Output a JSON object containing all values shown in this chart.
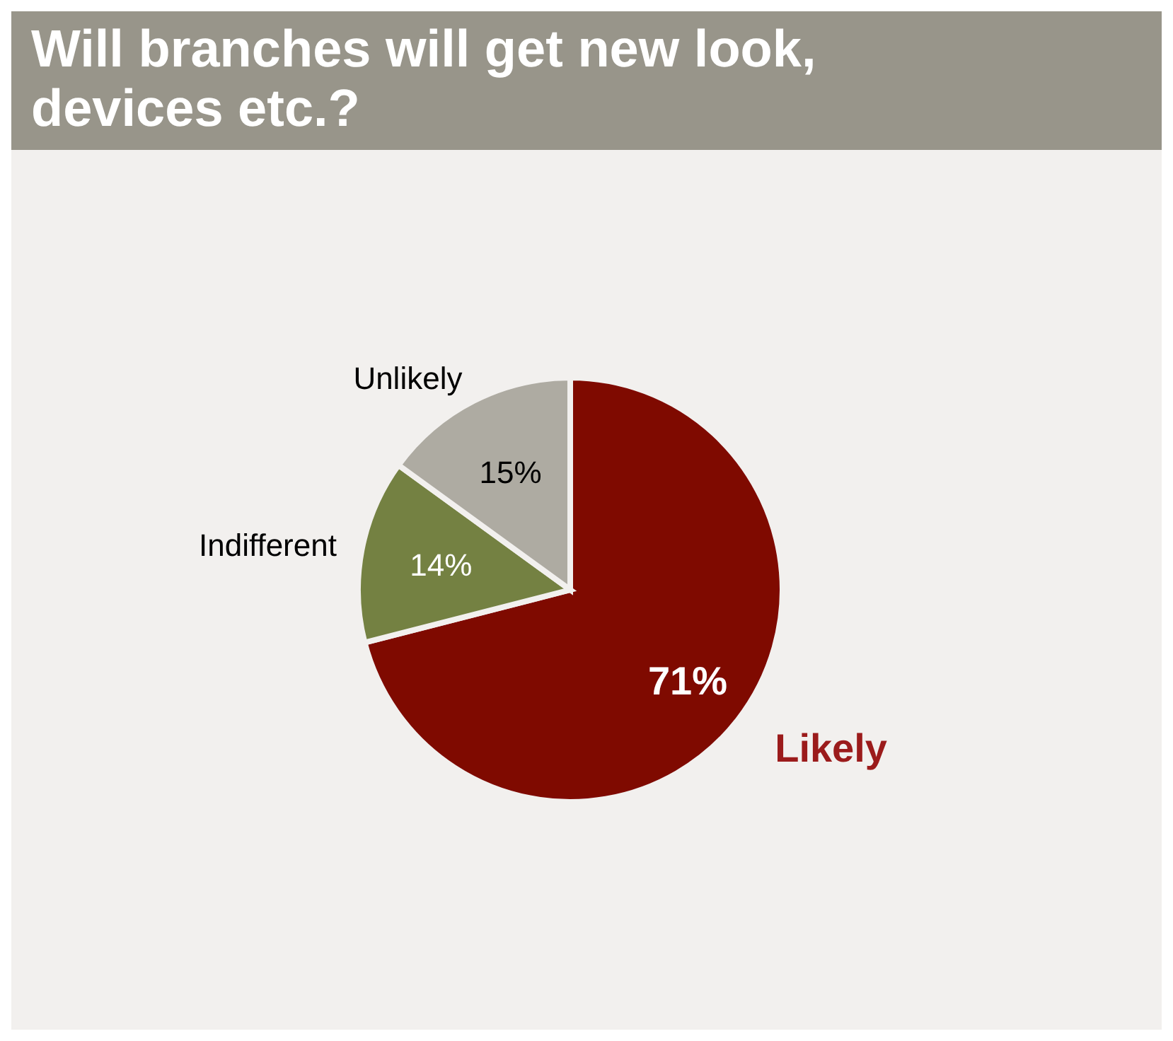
{
  "chart_data": {
    "type": "pie",
    "title": "Will branches will get new look, devices etc.?",
    "categories": [
      "Likely",
      "Indifferent",
      "Unlikely"
    ],
    "values": [
      71,
      14,
      15
    ],
    "colors": [
      "#7f0a00",
      "#748142",
      "#aeaba2"
    ],
    "value_labels": [
      "71%",
      "14%",
      "15%"
    ]
  }
}
